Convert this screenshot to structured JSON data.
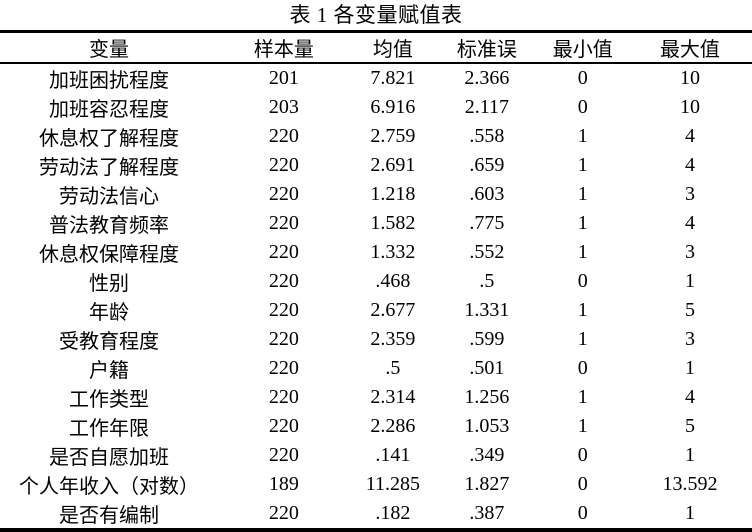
{
  "title": "表 1 各变量赋值表",
  "table": {
    "headers": [
      "变量",
      "样本量",
      "均值",
      "标准误",
      "最小值",
      "最大值"
    ],
    "rows": [
      [
        "加班困扰程度",
        "201",
        "7.821",
        "2.366",
        "0",
        "10"
      ],
      [
        "加班容忍程度",
        "203",
        "6.916",
        "2.117",
        "0",
        "10"
      ],
      [
        "休息权了解程度",
        "220",
        "2.759",
        ".558",
        "1",
        "4"
      ],
      [
        "劳动法了解程度",
        "220",
        "2.691",
        ".659",
        "1",
        "4"
      ],
      [
        "劳动法信心",
        "220",
        "1.218",
        ".603",
        "1",
        "3"
      ],
      [
        "普法教育频率",
        "220",
        "1.582",
        ".775",
        "1",
        "4"
      ],
      [
        "休息权保障程度",
        "220",
        "1.332",
        ".552",
        "1",
        "3"
      ],
      [
        "性别",
        "220",
        ".468",
        ".5",
        "0",
        "1"
      ],
      [
        "年龄",
        "220",
        "2.677",
        "1.331",
        "1",
        "5"
      ],
      [
        "受教育程度",
        "220",
        "2.359",
        ".599",
        "1",
        "3"
      ],
      [
        "户籍",
        "220",
        ".5",
        ".501",
        "0",
        "1"
      ],
      [
        "工作类型",
        "220",
        "2.314",
        "1.256",
        "1",
        "4"
      ],
      [
        "工作年限",
        "220",
        "2.286",
        "1.053",
        "1",
        "5"
      ],
      [
        "是否自愿加班",
        "220",
        ".141",
        ".349",
        "0",
        "1"
      ],
      [
        "个人年收入（对数）",
        "189",
        "11.285",
        "1.827",
        "0",
        "13.592"
      ],
      [
        "是否有编制",
        "220",
        ".182",
        ".387",
        "0",
        "1"
      ]
    ]
  },
  "chart_data": {
    "type": "table",
    "title": "表 1 各变量赋值表",
    "columns": [
      "变量",
      "样本量",
      "均值",
      "标准误",
      "最小值",
      "最大值"
    ],
    "rows": [
      [
        "加班困扰程度",
        201,
        7.821,
        2.366,
        0,
        10
      ],
      [
        "加班容忍程度",
        203,
        6.916,
        2.117,
        0,
        10
      ],
      [
        "休息权了解程度",
        220,
        2.759,
        0.558,
        1,
        4
      ],
      [
        "劳动法了解程度",
        220,
        2.691,
        0.659,
        1,
        4
      ],
      [
        "劳动法信心",
        220,
        1.218,
        0.603,
        1,
        3
      ],
      [
        "普法教育频率",
        220,
        1.582,
        0.775,
        1,
        4
      ],
      [
        "休息权保障程度",
        220,
        1.332,
        0.552,
        1,
        3
      ],
      [
        "性别",
        220,
        0.468,
        0.5,
        0,
        1
      ],
      [
        "年龄",
        220,
        2.677,
        1.331,
        1,
        5
      ],
      [
        "受教育程度",
        220,
        2.359,
        0.599,
        1,
        3
      ],
      [
        "户籍",
        220,
        0.5,
        0.501,
        0,
        1
      ],
      [
        "工作类型",
        220,
        2.314,
        1.256,
        1,
        4
      ],
      [
        "工作年限",
        220,
        2.286,
        1.053,
        1,
        5
      ],
      [
        "是否自愿加班",
        220,
        0.141,
        0.349,
        0,
        1
      ],
      [
        "个人年收入（对数）",
        189,
        11.285,
        1.827,
        0,
        13.592
      ],
      [
        "是否有编制",
        220,
        0.182,
        0.387,
        0,
        1
      ]
    ]
  }
}
